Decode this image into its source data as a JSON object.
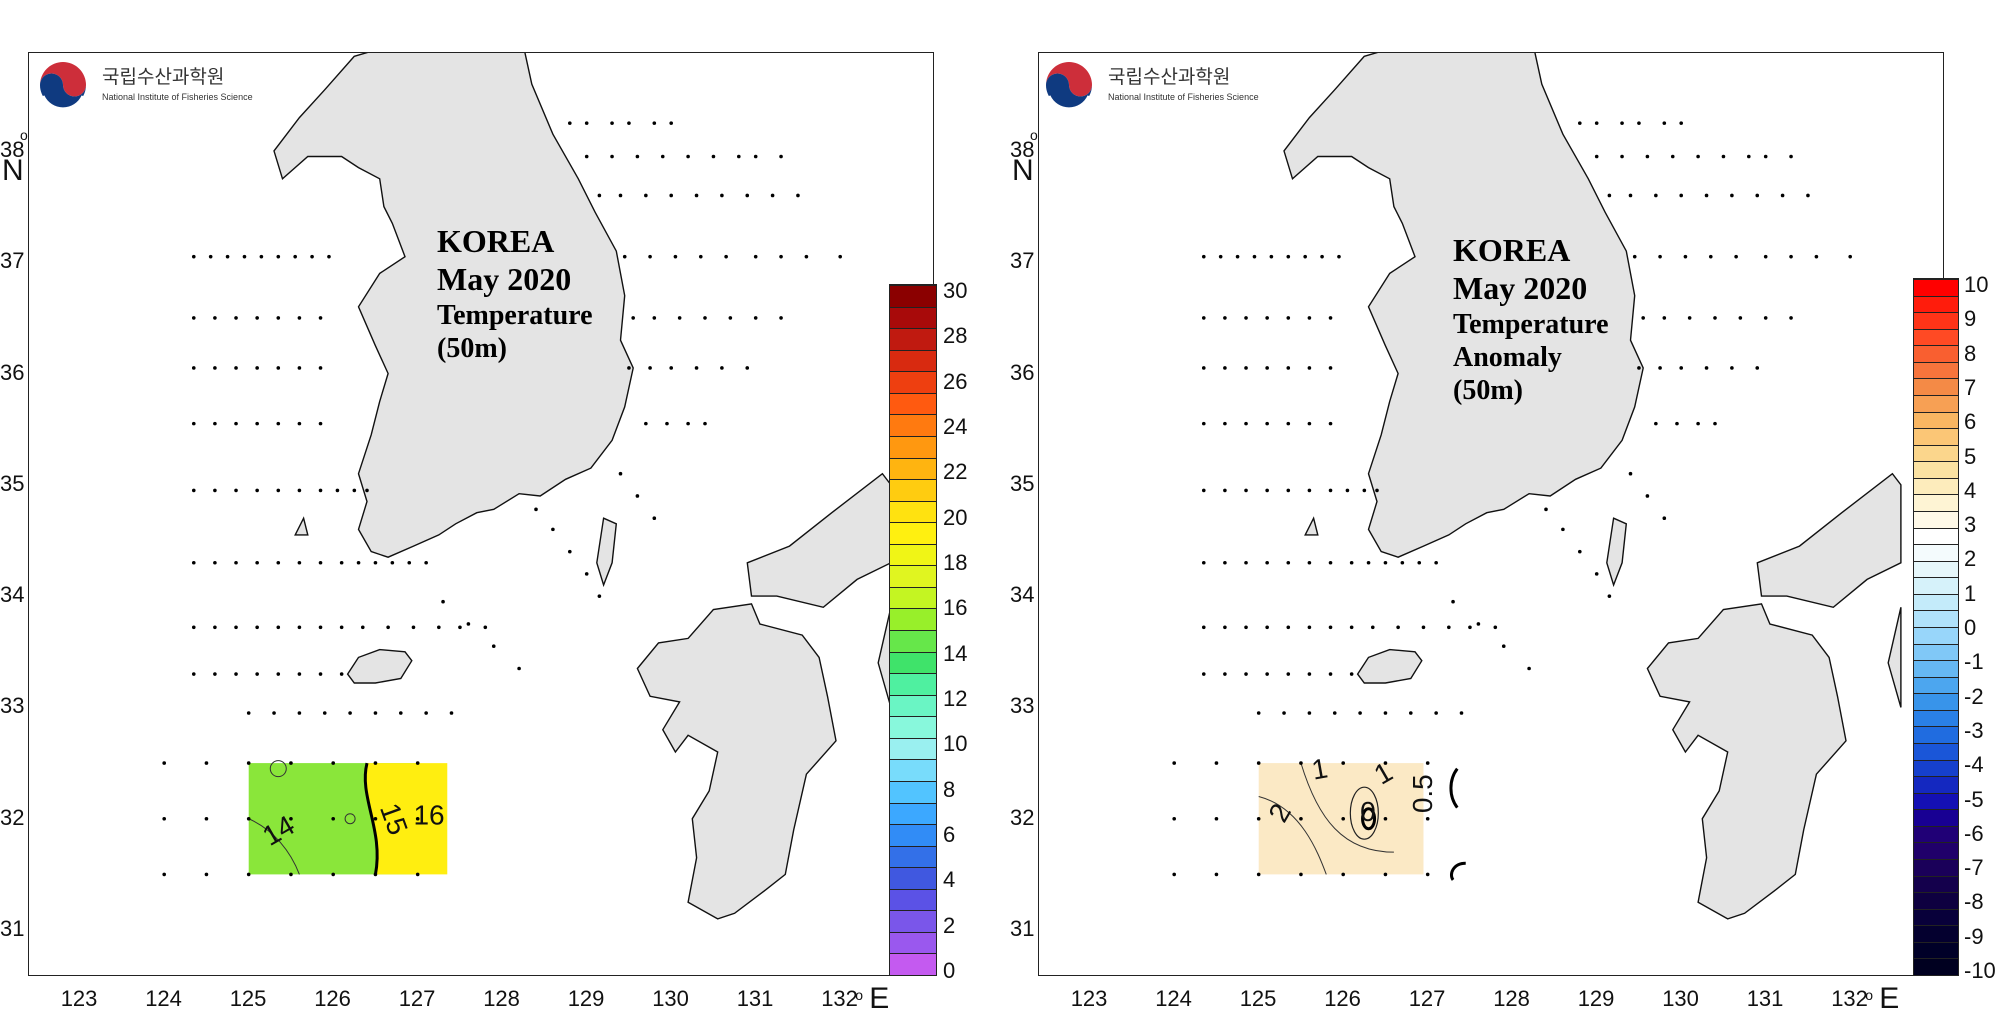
{
  "panels": [
    {
      "id": "temperature",
      "logo": {
        "korean": "국립수산과학원",
        "english": "National Institute of Fisheries Science"
      },
      "title": {
        "line1": "KOREA",
        "line2": "May 2020",
        "line3": "Temperature",
        "line4": "",
        "line5": "(50m)"
      },
      "colorbar": {
        "labels": [
          "30",
          "28",
          "26",
          "24",
          "22",
          "20",
          "18",
          "16",
          "14",
          "12",
          "10",
          "8",
          "6",
          "4",
          "2",
          "0"
        ],
        "colors": [
          "#8b0000",
          "#a80a0a",
          "#c01a10",
          "#d82a10",
          "#ee3f10",
          "#ff5a10",
          "#ff7a10",
          "#ff9810",
          "#ffb410",
          "#ffcc10",
          "#ffe210",
          "#fff010",
          "#f0f516",
          "#e0f520",
          "#c4f522",
          "#98ef2a",
          "#66e74a",
          "#3fe36a",
          "#4ff0a0",
          "#6af5c4",
          "#88f8dc",
          "#9af0f0",
          "#78dcfb",
          "#52c4ff",
          "#3ca8ff",
          "#318cf6",
          "#3370e8",
          "#4058e0",
          "#5b52e6",
          "#7a56ea",
          "#9a58ee",
          "#c45af0"
        ]
      },
      "contour_labels": [
        "14",
        "15",
        "16"
      ]
    },
    {
      "id": "anomaly",
      "logo": {
        "korean": "국립수산과학원",
        "english": "National Institute of Fisheries Science"
      },
      "title": {
        "line1": "KOREA",
        "line2": "May 2020",
        "line3": "Temperature",
        "line4": "Anomaly",
        "line5": "(50m)"
      },
      "colorbar": {
        "labels": [
          "10",
          "9",
          "8",
          "7",
          "6",
          "5",
          "4",
          "3",
          "2",
          "1",
          "0",
          "-1",
          "-2",
          "-3",
          "-4",
          "-5",
          "-6",
          "-7",
          "-8",
          "-9",
          "-10"
        ],
        "colors": [
          "#ff0000",
          "#ff1c0c",
          "#ff3418",
          "#ff4a24",
          "#f95f30",
          "#f6743c",
          "#f48a46",
          "#f7a054",
          "#f9b662",
          "#fbc676",
          "#fbd68c",
          "#fbe2a2",
          "#fdecbc",
          "#fef4d4",
          "#fff9e8",
          "#ffffff",
          "#f4fbfd",
          "#e6f7fb",
          "#d6f2fa",
          "#c4ebfa",
          "#b0e2fb",
          "#98d6fa",
          "#80c8f7",
          "#66b8f3",
          "#4ca6ef",
          "#3894ea",
          "#2a80e6",
          "#206ce0",
          "#1a56d8",
          "#1640cc",
          "#1428c0",
          "#1410b4",
          "#180093",
          "#200076",
          "#20006a",
          "#1a0059",
          "#14004c",
          "#0e0040",
          "#08003a",
          "#04002f",
          "#000028",
          "#000020"
        ]
      },
      "contour_labels": [
        "1",
        "1",
        "2",
        "0",
        "0.5"
      ]
    }
  ],
  "axes": {
    "lon_ticks": [
      "123",
      "124",
      "125",
      "126",
      "127",
      "128",
      "129",
      "130",
      "131",
      "132"
    ],
    "lat_ticks": [
      "31",
      "32",
      "33",
      "34",
      "35",
      "36",
      "37",
      "38"
    ],
    "lon_unit": "E",
    "lat_unit": "N",
    "degree_symbol": "o"
  },
  "colors": {
    "land": "#e4e4e4",
    "coast": "#111111",
    "frame": "#222222"
  }
}
